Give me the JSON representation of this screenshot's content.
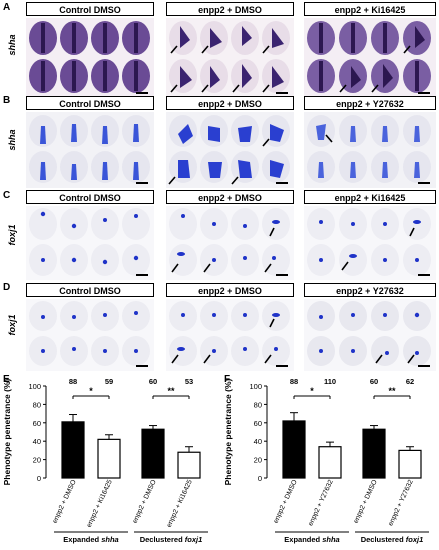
{
  "panels": [
    {
      "letter": "A",
      "gene": "shha",
      "headers": [
        "Control DMSO",
        "enpp2 + DMSO",
        "enpp2 + Ki16425"
      ]
    },
    {
      "letter": "B",
      "gene": "shha",
      "headers": [
        "Control DMSO",
        "enpp2 + DMSO",
        "enpp2 + Y27632"
      ]
    },
    {
      "letter": "C",
      "gene": "foxj1",
      "headers": [
        "Control DMSO",
        "enpp2 + DMSO",
        "enpp2 + Ki16425"
      ]
    },
    {
      "letter": "D",
      "gene": "foxj1",
      "headers": [
        "Control DMSO",
        "enpp2 + DMSO",
        "enpp2 + Y27632"
      ]
    }
  ],
  "colors": {
    "purple_stain": "#5a3a86",
    "blue_stain": "#2a3fd0",
    "embryo_pale": "#e9e3ee",
    "bar_black": "#000000",
    "bar_white": "#ffffff"
  },
  "chart_data": [
    {
      "panel": "E",
      "type": "bar",
      "ylabel": "Phenotype penetrance (%)",
      "ylim": [
        0,
        100
      ],
      "yticks": [
        0,
        20,
        40,
        60,
        80,
        100
      ],
      "groups": [
        {
          "label_prefix": "Expanded ",
          "label_gene": "shha",
          "categories": [
            "enpp2 + DMSO",
            "enpp2 + Ki16425"
          ],
          "values": [
            61,
            42
          ],
          "errors": [
            8,
            5
          ],
          "n": [
            "88",
            "59"
          ],
          "sig": "*"
        },
        {
          "label_prefix": "Declustered ",
          "label_gene": "foxj1",
          "categories": [
            "enpp2 + DMSO",
            "enpp2 + Ki16425"
          ],
          "values": [
            53,
            28
          ],
          "errors": [
            4,
            6
          ],
          "n": [
            "60",
            "53"
          ],
          "sig": "**"
        }
      ]
    },
    {
      "panel": "F",
      "type": "bar",
      "ylabel": "Phenotype penetrance (%)",
      "ylim": [
        0,
        100
      ],
      "yticks": [
        0,
        20,
        40,
        60,
        80,
        100
      ],
      "groups": [
        {
          "label_prefix": "Expanded ",
          "label_gene": "shha",
          "categories": [
            "enpp2 + DMSO",
            "enpp2 + Y27632"
          ],
          "values": [
            62,
            34
          ],
          "errors": [
            9,
            5
          ],
          "n": [
            "88",
            "110"
          ],
          "sig": "*"
        },
        {
          "label_prefix": "Declustered ",
          "label_gene": "foxj1",
          "categories": [
            "enpp2 + DMSO",
            "enpp2 + Y27632"
          ],
          "values": [
            53,
            30
          ],
          "errors": [
            4,
            4
          ],
          "n": [
            "60",
            "62"
          ],
          "sig": "**"
        }
      ]
    }
  ]
}
